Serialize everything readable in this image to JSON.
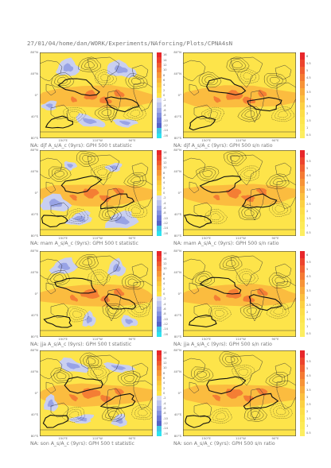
{
  "page_title": "27/01/04/home/dan/WORK/Experiments/NAforcing/Plots/CPNA4sN",
  "axes": {
    "lat_ticks": [
      "80°N",
      "40°N",
      "0°",
      "40°S",
      "80°S"
    ],
    "lon_ticks": [
      "150°E",
      "110°W",
      "90°E"
    ]
  },
  "colorbars": {
    "t_statistic": {
      "ticks": [
        "16",
        "14",
        "12",
        "10",
        "8",
        "6",
        "4",
        "2",
        "0",
        "-2",
        "-4",
        "-6",
        "-8",
        "-10",
        "-12",
        "-14",
        "-16"
      ],
      "colors": [
        "#e8262a",
        "#ec3e2c",
        "#f15a2f",
        "#f47a33",
        "#f79638",
        "#f9b13c",
        "#fbc73f",
        "#fcd843",
        "#fde44a",
        "#d8dbf3",
        "#bcc3ee",
        "#a0a9e7",
        "#8390df",
        "#6a78d6",
        "#5563c9",
        "#42c7e5",
        "#2ee3f0"
      ]
    },
    "sn_ratio": {
      "ticks": [
        "6",
        "5.5",
        "5",
        "4.5",
        "4",
        "3.5",
        "3",
        "2.5",
        "2",
        "1.5",
        "1",
        "0.5"
      ],
      "colors": [
        "#e8262a",
        "#ed432d",
        "#f15f30",
        "#f47a33",
        "#f79337",
        "#f9ab3b",
        "#fbc03f",
        "#fcd142",
        "#fdde47",
        "#fde64d",
        "#fdeb56",
        "#fdee60"
      ]
    }
  },
  "panels": [
    {
      "caption": "NA: djf A_s/A_c (9yrs): GPH 500 t statistic",
      "variable": "t statistic",
      "season": "djf",
      "colorbar": "t_statistic",
      "blue_regions": 5,
      "wave": 0.0
    },
    {
      "caption": "NA: djf A_s/A_c (9yrs): GPH 500 s/n ratio",
      "variable": "s/n ratio",
      "season": "djf",
      "colorbar": "sn_ratio",
      "blue_regions": 0,
      "wave": 0.0
    },
    {
      "caption": "NA: mam A_s/A_c (9yrs): GPH 500 t statistic",
      "variable": "t statistic",
      "season": "mam",
      "colorbar": "t_statistic",
      "blue_regions": 5,
      "wave": 1.3
    },
    {
      "caption": "NA: mam A_s/A_c (9yrs): GPH 500 s/n ratio",
      "variable": "s/n ratio",
      "season": "mam",
      "colorbar": "sn_ratio",
      "blue_regions": 0,
      "wave": 1.3
    },
    {
      "caption": "NA: jja A_s/A_c (9yrs): GPH 500 t statistic",
      "variable": "t statistic",
      "season": "jja",
      "colorbar": "t_statistic",
      "blue_regions": 4,
      "wave": 2.5
    },
    {
      "caption": "NA: jja A_s/A_c (9yrs): GPH 500 s/n ratio",
      "variable": "s/n ratio",
      "season": "jja",
      "colorbar": "sn_ratio",
      "blue_regions": 0,
      "wave": 2.5
    },
    {
      "caption": "NA: son A_s/A_c (9yrs): GPH 500 t statistic",
      "variable": "t statistic",
      "season": "son",
      "colorbar": "t_statistic",
      "blue_regions": 5,
      "wave": 3.8
    },
    {
      "caption": "NA: son A_s/A_c (9yrs): GPH 500 s/n ratio",
      "variable": "s/n ratio",
      "season": "son",
      "colorbar": "sn_ratio",
      "blue_regions": 0,
      "wave": 3.8
    }
  ],
  "colors": {
    "yellow": "#fde44a",
    "orange": "#f9ab3b",
    "red": "#ef4a2c",
    "pale_blue": "#c9cff0",
    "blue": "#8390df",
    "land": "#333333",
    "contour": "#111111"
  },
  "chart_data": [
    {
      "type": "heatmap",
      "title": "",
      "variable": "GPH 500 t statistic",
      "season": "djf",
      "colorbar_ticks": [
        "16",
        "14",
        "12",
        "10",
        "8",
        "6",
        "4",
        "2",
        "0",
        "-2",
        "-4",
        "-6",
        "-8",
        "-10",
        "-12",
        "-14",
        "-16"
      ]
    },
    {
      "type": "heatmap",
      "title": "",
      "variable": "GPH 500 s/n ratio",
      "season": "djf",
      "colorbar_ticks": [
        "6",
        "5.5",
        "5",
        "4.5",
        "4",
        "3.5",
        "3",
        "2.5",
        "2",
        "1.5",
        "1",
        "0.5"
      ]
    },
    {
      "type": "heatmap",
      "title": "",
      "variable": "GPH 500 t statistic",
      "season": "mam"
    },
    {
      "type": "heatmap",
      "title": "",
      "variable": "GPH 500 s/n ratio",
      "season": "mam"
    },
    {
      "type": "heatmap",
      "title": "",
      "variable": "GPH 500 t statistic",
      "season": "jja"
    },
    {
      "type": "heatmap",
      "title": "",
      "variable": "GPH 500 s/n ratio",
      "season": "jja"
    },
    {
      "type": "heatmap",
      "title": "",
      "variable": "GPH 500 t statistic",
      "season": "son"
    },
    {
      "type": "heatmap",
      "title": "",
      "variable": "GPH 500 s/n ratio",
      "season": "son"
    }
  ]
}
